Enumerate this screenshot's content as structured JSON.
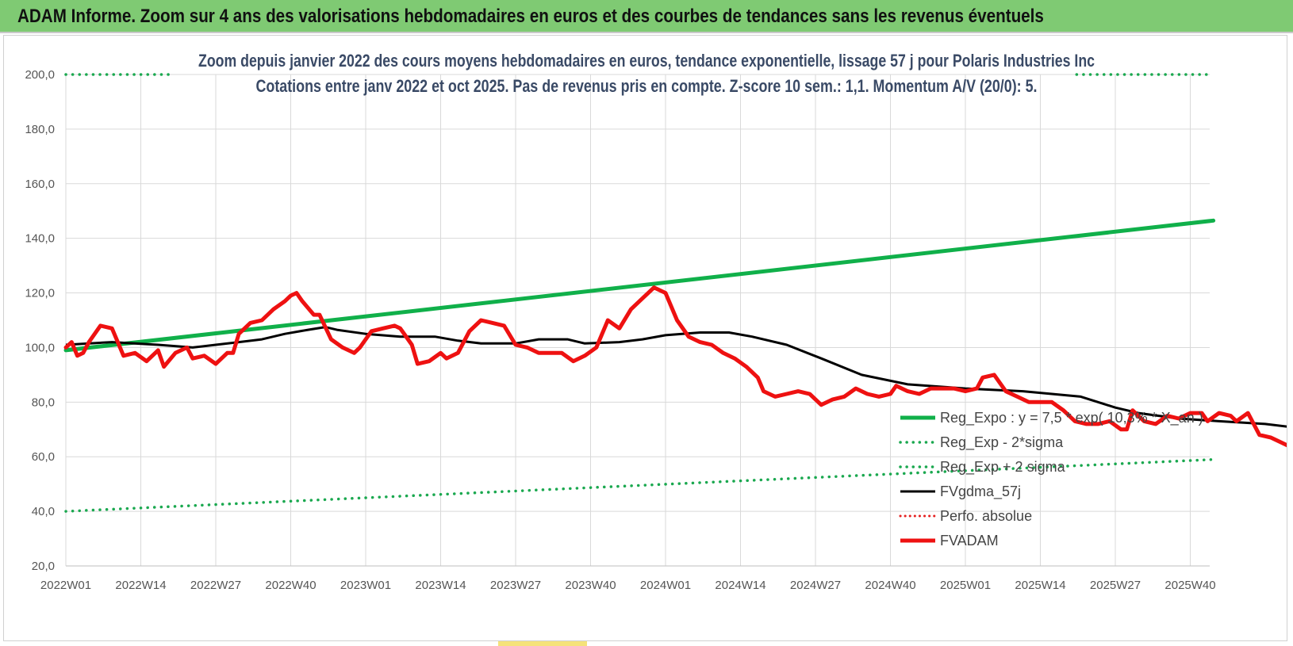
{
  "header": {
    "title": "ADAM Informe. Zoom sur 4 ans des valorisations hebdomadaires en euros et des courbes de tendances sans les revenus éventuels"
  },
  "colors": {
    "banner": "#7fca73",
    "reg_expo": "#10b04a",
    "sigma": "#1aa84f",
    "fvgdma": "#000000",
    "perfo": "#e52020",
    "fvadam": "#ee1111",
    "grid": "#d9d9d9"
  },
  "chart_data": {
    "type": "line",
    "title_line1": "Zoom depuis janvier 2022 des cours moyens hebdomadaires en euros, tendance exponentielle, lissage 57 j pour Polaris Industries Inc",
    "title_line2": "Cotations entre janv 2022 et oct 2025. Pas de revenus pris en compte. Z-score 10 sem.: 1,1. Momentum A/V (20/0): 5.",
    "ylim": [
      20,
      200
    ],
    "y_ticks": [
      "20,0",
      "40,0",
      "60,0",
      "80,0",
      "100,0",
      "120,0",
      "140,0",
      "160,0",
      "180,0",
      "200,0"
    ],
    "x_ticks": [
      "2022W01",
      "2022W14",
      "2022W27",
      "2022W40",
      "2023W01",
      "2023W14",
      "2023W27",
      "2023W40",
      "2024W01",
      "2024W14",
      "2024W27",
      "2024W40",
      "2025W01",
      "2025W14",
      "2025W27",
      "2025W40"
    ],
    "weeks_total": 199,
    "legend": [
      {
        "key": "reg_expo",
        "label": "Reg_Expo : y = 7,5 * exp( 10,3% * X_an )"
      },
      {
        "key": "minus2",
        "label": "Reg_Exp - 2*sigma"
      },
      {
        "key": "plus2",
        "label": "Reg_Exp + 2 sigma"
      },
      {
        "key": "fvgdma",
        "label": "FVgdma_57j"
      },
      {
        "key": "perfo",
        "label": "Perfo. absolue"
      },
      {
        "key": "fvadam",
        "label": "FVADAM"
      }
    ],
    "series": [
      {
        "name": "Reg_Expo",
        "points": [
          [
            0,
            99
          ],
          [
            199,
            146.5
          ]
        ]
      },
      {
        "name": "Reg_Exp - 2*sigma",
        "points": [
          [
            0,
            40
          ],
          [
            199,
            59
          ]
        ]
      },
      {
        "name": "Reg_Exp + 2 sigma",
        "points": [
          [
            0,
            200
          ],
          [
            199,
            200
          ]
        ]
      },
      {
        "name": "FVgdma_57j",
        "points": [
          [
            0,
            101
          ],
          [
            8,
            102
          ],
          [
            16,
            101
          ],
          [
            22,
            100
          ],
          [
            26,
            101
          ],
          [
            30,
            102
          ],
          [
            34,
            103
          ],
          [
            38,
            105
          ],
          [
            42,
            106.5
          ],
          [
            45,
            107.5
          ],
          [
            47,
            106.5
          ],
          [
            52,
            105
          ],
          [
            58,
            104
          ],
          [
            64,
            104
          ],
          [
            68,
            102.5
          ],
          [
            72,
            101.5
          ],
          [
            78,
            101.5
          ],
          [
            82,
            103
          ],
          [
            87,
            103
          ],
          [
            90,
            101.5
          ],
          [
            96,
            102
          ],
          [
            100,
            103
          ],
          [
            104,
            104.5
          ],
          [
            110,
            105.5
          ],
          [
            115,
            105.5
          ],
          [
            119,
            104
          ],
          [
            125,
            101
          ],
          [
            131,
            96
          ],
          [
            138,
            90
          ],
          [
            146,
            86.5
          ],
          [
            156,
            85
          ],
          [
            166,
            84
          ],
          [
            176,
            82
          ],
          [
            182,
            78
          ],
          [
            186,
            76
          ],
          [
            193,
            74
          ],
          [
            200,
            73
          ],
          [
            208,
            72
          ],
          [
            216,
            70
          ],
          [
            222,
            67
          ],
          [
            228,
            62
          ],
          [
            234,
            57
          ],
          [
            240,
            52
          ],
          [
            246,
            47
          ],
          [
            252,
            43
          ],
          [
            256,
            41
          ],
          [
            260,
            39.5
          ],
          [
            266,
            39.5
          ],
          [
            272,
            40
          ],
          [
            278,
            41
          ],
          [
            284,
            43
          ],
          [
            290,
            46
          ],
          [
            296,
            49
          ],
          [
            302,
            51
          ],
          [
            308,
            54
          ]
        ]
      },
      {
        "name": "FVADAM",
        "points": [
          [
            0,
            100
          ],
          [
            1,
            102
          ],
          [
            2,
            97
          ],
          [
            3,
            98
          ],
          [
            4,
            102
          ],
          [
            6,
            108
          ],
          [
            8,
            107
          ],
          [
            10,
            97
          ],
          [
            12,
            98
          ],
          [
            14,
            95
          ],
          [
            16,
            99
          ],
          [
            17,
            93
          ],
          [
            19,
            98
          ],
          [
            21,
            100
          ],
          [
            22,
            96
          ],
          [
            24,
            97
          ],
          [
            26,
            94
          ],
          [
            28,
            98
          ],
          [
            29,
            98
          ],
          [
            30,
            105
          ],
          [
            32,
            109
          ],
          [
            34,
            110
          ],
          [
            36,
            114
          ],
          [
            38,
            117
          ],
          [
            39,
            119
          ],
          [
            40,
            120
          ],
          [
            41,
            117
          ],
          [
            43,
            112
          ],
          [
            44,
            112
          ],
          [
            46,
            103
          ],
          [
            48,
            100
          ],
          [
            50,
            98
          ],
          [
            51,
            100
          ],
          [
            53,
            106
          ],
          [
            55,
            107
          ],
          [
            57,
            108
          ],
          [
            58,
            107
          ],
          [
            60,
            101
          ],
          [
            61,
            94
          ],
          [
            63,
            95
          ],
          [
            65,
            98
          ],
          [
            66,
            96
          ],
          [
            68,
            98
          ],
          [
            70,
            106
          ],
          [
            72,
            110
          ],
          [
            74,
            109
          ],
          [
            76,
            108
          ],
          [
            78,
            101
          ],
          [
            80,
            100
          ],
          [
            82,
            98
          ],
          [
            84,
            98
          ],
          [
            86,
            98
          ],
          [
            88,
            95
          ],
          [
            90,
            97
          ],
          [
            92,
            100
          ],
          [
            94,
            110
          ],
          [
            96,
            107
          ],
          [
            98,
            114
          ],
          [
            100,
            118
          ],
          [
            102,
            122
          ],
          [
            104,
            120
          ],
          [
            106,
            110
          ],
          [
            108,
            104
          ],
          [
            110,
            102
          ],
          [
            112,
            101
          ],
          [
            114,
            98
          ],
          [
            116,
            96
          ],
          [
            118,
            93
          ],
          [
            120,
            89
          ],
          [
            121,
            84
          ],
          [
            123,
            82
          ],
          [
            125,
            83
          ],
          [
            127,
            84
          ],
          [
            129,
            83
          ],
          [
            131,
            79
          ],
          [
            133,
            81
          ],
          [
            135,
            82
          ],
          [
            137,
            85
          ],
          [
            139,
            83
          ],
          [
            141,
            82
          ],
          [
            143,
            83
          ],
          [
            144,
            86
          ],
          [
            146,
            84
          ],
          [
            148,
            83
          ],
          [
            150,
            85
          ],
          [
            152,
            85
          ],
          [
            154,
            85
          ],
          [
            156,
            84
          ],
          [
            158,
            85
          ],
          [
            159,
            89
          ],
          [
            161,
            90
          ],
          [
            163,
            84
          ],
          [
            165,
            82
          ],
          [
            167,
            80
          ],
          [
            169,
            80
          ],
          [
            171,
            80
          ],
          [
            173,
            77
          ],
          [
            175,
            73
          ],
          [
            177,
            72
          ],
          [
            179,
            72
          ],
          [
            181,
            73
          ],
          [
            183,
            70
          ],
          [
            184,
            70
          ],
          [
            185,
            77
          ],
          [
            187,
            73
          ],
          [
            189,
            72
          ],
          [
            191,
            75
          ],
          [
            193,
            74
          ],
          [
            195,
            76
          ],
          [
            197,
            76
          ],
          [
            198,
            73
          ],
          [
            200,
            76
          ],
          [
            202,
            75
          ],
          [
            203,
            73
          ],
          [
            205,
            76
          ],
          [
            207,
            68
          ],
          [
            209,
            67
          ],
          [
            211,
            65
          ],
          [
            213,
            63
          ],
          [
            215,
            62
          ],
          [
            217,
            57
          ],
          [
            219,
            55
          ],
          [
            221,
            53
          ],
          [
            223,
            51
          ],
          [
            225,
            47
          ],
          [
            227,
            44
          ],
          [
            229,
            44
          ],
          [
            231,
            42
          ],
          [
            233,
            40
          ],
          [
            235,
            40
          ],
          [
            237,
            36
          ],
          [
            239,
            31
          ],
          [
            241,
            30
          ],
          [
            243,
            30
          ],
          [
            245,
            31
          ],
          [
            247,
            35
          ],
          [
            249,
            35
          ],
          [
            251,
            35
          ],
          [
            253,
            36
          ],
          [
            255,
            36
          ],
          [
            257,
            35
          ],
          [
            259,
            37
          ],
          [
            261,
            41
          ],
          [
            263,
            41
          ],
          [
            265,
            43
          ],
          [
            267,
            45
          ],
          [
            269,
            44
          ],
          [
            271,
            47
          ],
          [
            273,
            48
          ],
          [
            275,
            49
          ],
          [
            277,
            49
          ],
          [
            279,
            50
          ],
          [
            281,
            49
          ],
          [
            283,
            48
          ],
          [
            285,
            52
          ],
          [
            287,
            55
          ],
          [
            289,
            56
          ],
          [
            291,
            58
          ],
          [
            293,
            58
          ],
          [
            295,
            59
          ],
          [
            297,
            60
          ],
          [
            299,
            58
          ],
          [
            301,
            58
          ],
          [
            304,
            59
          ],
          [
            308,
            59
          ]
        ]
      }
    ]
  }
}
